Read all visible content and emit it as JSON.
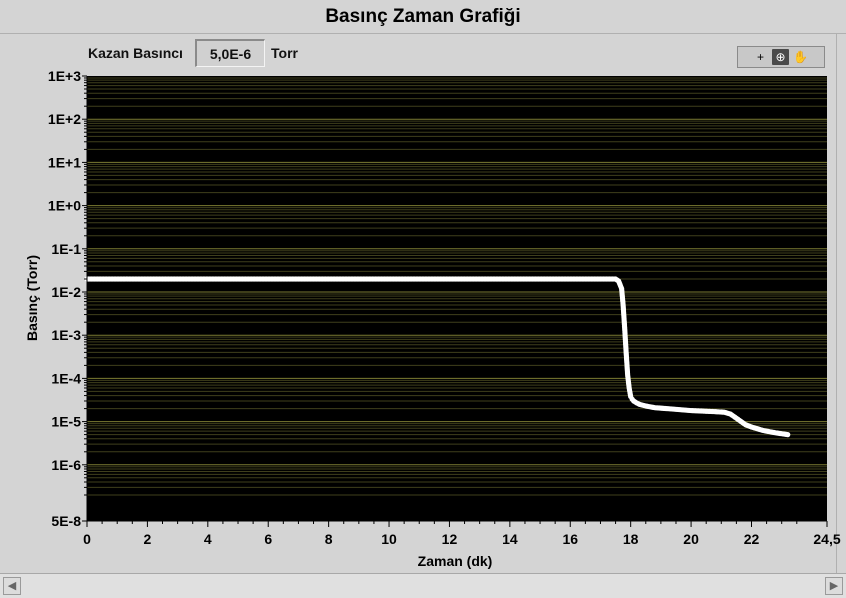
{
  "window": {
    "title": "Basınç Zaman Grafiği"
  },
  "indicator": {
    "label": "Kazan Basıncı",
    "value": "5,0E-6",
    "unit": "Torr"
  },
  "palette": {
    "icons": [
      "crosshair-icon",
      "zoom-icon",
      "pan-hand-icon"
    ],
    "glyphs": [
      "+",
      "⊕",
      "✋"
    ]
  },
  "scrollbar": {
    "left_arrow": "◀",
    "right_arrow": "▶"
  },
  "colors": {
    "plot_background": "#000000",
    "major_grid": "#7b7b33",
    "minor_grid": "#3f3f1c",
    "trace": "#ffffff",
    "panel": "#d4d4d4"
  },
  "chart_data": {
    "type": "scatter",
    "title": "",
    "xlabel": "Zaman (dk)",
    "ylabel": "Basınç (Torr)",
    "xlim": [
      0,
      24.5
    ],
    "ylim": [
      5e-08,
      1000
    ],
    "yscale": "log",
    "grid": true,
    "x_ticks": [
      0,
      2,
      4,
      6,
      8,
      10,
      12,
      14,
      16,
      18,
      20,
      22,
      24.5
    ],
    "x_tick_labels": [
      "0",
      "2",
      "4",
      "6",
      "8",
      "10",
      "12",
      "14",
      "16",
      "18",
      "20",
      "22",
      "24,5"
    ],
    "y_ticks": [
      5e-08,
      1e-06,
      1e-05,
      0.0001,
      0.001,
      0.01,
      0.1,
      1,
      10,
      100,
      1000
    ],
    "y_tick_labels": [
      "5E-8",
      "1E-6",
      "1E-5",
      "1E-4",
      "1E-3",
      "1E-2",
      "1E-1",
      "1E+0",
      "1E+1",
      "1E+2",
      "1E+3"
    ],
    "series": [
      {
        "name": "",
        "x": [
          0,
          2,
          4,
          6,
          8,
          10,
          12,
          14,
          16,
          17,
          17.5,
          17.6,
          17.7,
          17.75,
          17.8,
          17.85,
          17.9,
          17.95,
          18.0,
          18.05,
          18.1,
          18.2,
          18.3,
          18.5,
          18.8,
          19.2,
          19.6,
          20.0,
          20.4,
          20.8,
          21.1,
          21.3,
          21.5,
          21.8,
          22.0,
          22.4,
          22.8,
          23.2
        ],
        "y": [
          0.02,
          0.02,
          0.02,
          0.02,
          0.02,
          0.02,
          0.02,
          0.02,
          0.02,
          0.02,
          0.02,
          0.018,
          0.012,
          0.005,
          0.0015,
          0.0004,
          0.00012,
          6e-05,
          3.8e-05,
          3.3e-05,
          3e-05,
          2.7e-05,
          2.5e-05,
          2.3e-05,
          2.1e-05,
          2e-05,
          1.9e-05,
          1.8e-05,
          1.75e-05,
          1.7e-05,
          1.65e-05,
          1.5e-05,
          1.2e-05,
          8.5e-06,
          7.5e-06,
          6.2e-06,
          5.5e-06,
          5e-06
        ]
      }
    ]
  }
}
